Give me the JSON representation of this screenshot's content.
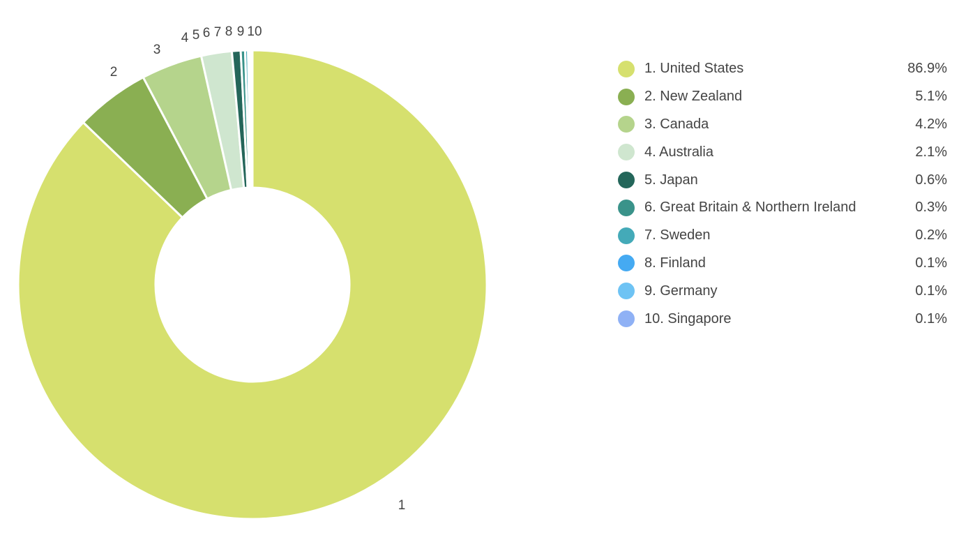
{
  "chart_data": {
    "type": "pie",
    "donut": true,
    "legend_position": "right",
    "slices": [
      {
        "label": "1",
        "name": "1. United States",
        "value": 86.9,
        "value_text": "86.9%",
        "color": "#d6e06e"
      },
      {
        "label": "2",
        "name": "2. New Zealand",
        "value": 5.1,
        "value_text": "5.1%",
        "color": "#8aaf52"
      },
      {
        "label": "3",
        "name": "3. Canada",
        "value": 4.2,
        "value_text": "4.2%",
        "color": "#b5d48c"
      },
      {
        "label": "4",
        "name": "4. Australia",
        "value": 2.1,
        "value_text": "2.1%",
        "color": "#cfe6cf"
      },
      {
        "label": "5",
        "name": "5. Japan",
        "value": 0.6,
        "value_text": "0.6%",
        "color": "#24665a"
      },
      {
        "label": "6",
        "name": "6. Great Britain & Northern Ireland",
        "value": 0.3,
        "value_text": "0.3%",
        "color": "#3a938a"
      },
      {
        "label": "7",
        "name": "7. Sweden",
        "value": 0.2,
        "value_text": "0.2%",
        "color": "#44aab8"
      },
      {
        "label": "8",
        "name": "8. Finland",
        "value": 0.1,
        "value_text": "0.1%",
        "color": "#45aaf2"
      },
      {
        "label": "9",
        "name": "9. Germany",
        "value": 0.1,
        "value_text": "0.1%",
        "color": "#6ec3f4"
      },
      {
        "label": "10",
        "name": "10. Singapore",
        "value": 0.1,
        "value_text": "0.1%",
        "color": "#8fb1f5"
      }
    ]
  }
}
